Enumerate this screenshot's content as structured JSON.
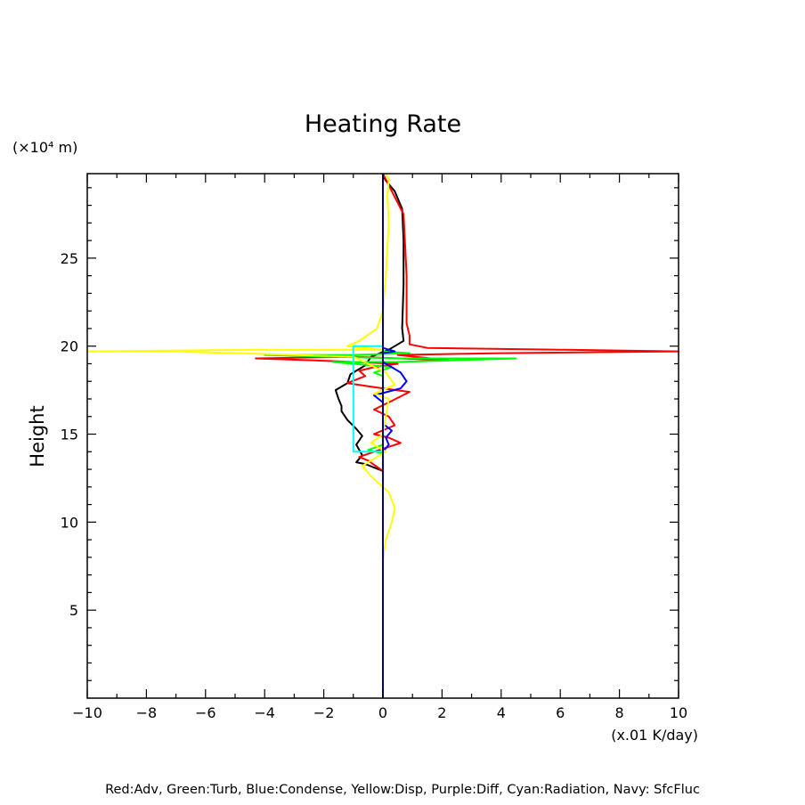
{
  "chart_data": {
    "type": "line",
    "title": "Heating Rate",
    "ylabel": "Height",
    "yunit": "(×10⁴ m)",
    "xunit": "(x.01 K/day)",
    "xlim": [
      -10,
      10
    ],
    "ylim": [
      0,
      29.8
    ],
    "xticks": [
      -10,
      -8,
      -6,
      -4,
      -2,
      0,
      2,
      4,
      6,
      8,
      10
    ],
    "yticks": [
      5,
      10,
      15,
      20,
      25
    ],
    "footer": "Red:Adv, Green:Turb, Blue:Condense, Yellow:Disp, Purple:Diff, Cyan:Radiation, Navy: SfcFluc",
    "series": [
      {
        "id": "total",
        "color": "#000000",
        "points": [
          [
            0,
            12.9
          ],
          [
            -0.6,
            13.3
          ],
          [
            -0.9,
            13.4
          ],
          [
            -0.7,
            13.8
          ],
          [
            -0.9,
            14.4
          ],
          [
            -0.7,
            14.9
          ],
          [
            -0.9,
            15.3
          ],
          [
            -1.2,
            15.8
          ],
          [
            -1.4,
            16.3
          ],
          [
            -1.4,
            16.6
          ],
          [
            -1.5,
            17.0
          ],
          [
            -1.6,
            17.5
          ],
          [
            -1.2,
            17.9
          ],
          [
            -1.1,
            18.4
          ],
          [
            -0.6,
            18.9
          ],
          [
            -0.4,
            19.4
          ],
          [
            0.2,
            19.8
          ],
          [
            0.7,
            20.3
          ],
          [
            0.65,
            21.0
          ],
          [
            0.7,
            23.5
          ],
          [
            0.7,
            26.0
          ],
          [
            0.65,
            27.8
          ],
          [
            0.4,
            28.8
          ],
          [
            0.1,
            29.4
          ],
          [
            0,
            29.7
          ]
        ]
      },
      {
        "id": "adv",
        "color": "#ff0000",
        "points": [
          [
            0,
            12.9
          ],
          [
            -0.5,
            13.5
          ],
          [
            -0.8,
            13.7
          ],
          [
            -0.3,
            14.0
          ],
          [
            0.6,
            14.5
          ],
          [
            0.2,
            14.8
          ],
          [
            -0.3,
            15.0
          ],
          [
            0.4,
            15.5
          ],
          [
            0.2,
            16.0
          ],
          [
            -0.3,
            16.4
          ],
          [
            0.2,
            16.8
          ],
          [
            0.9,
            17.4
          ],
          [
            0,
            17.6
          ],
          [
            -0.4,
            17.7
          ],
          [
            -1.2,
            17.9
          ],
          [
            -0.6,
            18.3
          ],
          [
            -0.8,
            18.6
          ],
          [
            -0.3,
            18.8
          ],
          [
            0.5,
            19.0
          ],
          [
            -2.5,
            19.2
          ],
          [
            -4.3,
            19.3
          ],
          [
            -1.0,
            19.4
          ],
          [
            2.2,
            19.2
          ],
          [
            0.5,
            19.5
          ],
          [
            4.0,
            19.6
          ],
          [
            10.0,
            19.7
          ],
          [
            6.0,
            19.8
          ],
          [
            1.5,
            19.9
          ],
          [
            0.9,
            20.1
          ],
          [
            0.9,
            20.6
          ],
          [
            0.8,
            21.3
          ],
          [
            0.8,
            24.0
          ],
          [
            0.7,
            27.5
          ],
          [
            0.3,
            28.8
          ],
          [
            0,
            29.8
          ]
        ]
      },
      {
        "id": "turb",
        "color": "#00ff00",
        "points": [
          [
            0,
            13.9
          ],
          [
            -0.5,
            14.1
          ],
          [
            0,
            14.4
          ],
          [
            0,
            18.3
          ],
          [
            -0.3,
            18.5
          ],
          [
            0.3,
            18.8
          ],
          [
            -1.7,
            19.1
          ],
          [
            0.5,
            19.1
          ],
          [
            4.5,
            19.3
          ],
          [
            0.5,
            19.3
          ],
          [
            -4.0,
            19.5
          ],
          [
            -1.0,
            19.5
          ],
          [
            0.9,
            19.6
          ],
          [
            0,
            19.7
          ]
        ]
      },
      {
        "id": "condense",
        "color": "#0000ff",
        "points": [
          [
            0,
            14.0
          ],
          [
            0.2,
            14.4
          ],
          [
            0.1,
            14.8
          ],
          [
            0.3,
            15.2
          ],
          [
            0,
            15.6
          ],
          [
            0,
            16.8
          ],
          [
            -0.3,
            17.2
          ],
          [
            0.6,
            17.6
          ],
          [
            0.8,
            18.0
          ],
          [
            0.6,
            18.5
          ],
          [
            0.3,
            18.8
          ],
          [
            0,
            19.1
          ],
          [
            0,
            19.6
          ],
          [
            0.4,
            19.7
          ],
          [
            0,
            19.9
          ]
        ]
      },
      {
        "id": "disp",
        "color": "#ffff00",
        "points": [
          [
            0,
            7.9
          ],
          [
            0.1,
            9.0
          ],
          [
            0.3,
            10.0
          ],
          [
            0.4,
            10.8
          ],
          [
            0.2,
            11.7
          ],
          [
            -0.4,
            12.6
          ],
          [
            -0.7,
            13.2
          ],
          [
            -0.3,
            13.6
          ],
          [
            0.1,
            14.0
          ],
          [
            -0.4,
            14.5
          ],
          [
            0,
            15.0
          ],
          [
            0.2,
            17.0
          ],
          [
            -0.3,
            17.3
          ],
          [
            0.4,
            17.8
          ],
          [
            0.1,
            18.5
          ],
          [
            -1.0,
            19.4
          ],
          [
            -7.0,
            19.7
          ],
          [
            -10.0,
            19.7
          ],
          [
            -4.0,
            19.8
          ],
          [
            0,
            19.8
          ],
          [
            -1.2,
            20.0
          ],
          [
            -0.8,
            20.3
          ],
          [
            -0.2,
            21.0
          ],
          [
            0,
            22.0
          ],
          [
            0.1,
            24.0
          ],
          [
            0.2,
            27.0
          ],
          [
            0.15,
            28.5
          ],
          [
            0.2,
            29.5
          ],
          [
            0.1,
            29.8
          ]
        ]
      },
      {
        "id": "radiation",
        "color": "#00ffff",
        "points": [
          [
            0,
            14.0
          ],
          [
            -1.0,
            14.0
          ],
          [
            -1.0,
            20.0
          ],
          [
            0,
            20.0
          ]
        ]
      },
      {
        "id": "sfcfluc",
        "color": "#000080",
        "points": [
          [
            0,
            0
          ],
          [
            0,
            29.8
          ]
        ]
      }
    ]
  }
}
